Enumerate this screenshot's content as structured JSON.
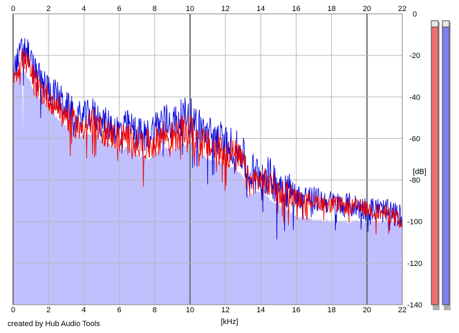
{
  "chart_data": {
    "type": "area",
    "title": "",
    "xlabel": "[kHz]",
    "ylabel": "[dB]",
    "xlim": [
      0,
      22
    ],
    "ylim": [
      -140,
      0
    ],
    "x_ticks": [
      0,
      2,
      4,
      6,
      8,
      10,
      12,
      14,
      16,
      18,
      20,
      22
    ],
    "y_ticks": [
      0,
      -20,
      -40,
      -60,
      -80,
      -100,
      -120,
      -140
    ],
    "grid": true,
    "series": [
      {
        "color": "#0000dd",
        "x": [
          0,
          0.3,
          0.55,
          0.8,
          1.2,
          1.6,
          2.0,
          2.5,
          3.0,
          3.5,
          4.0,
          4.5,
          5.0,
          5.5,
          6.0,
          6.5,
          7.0,
          7.5,
          8.0,
          8.5,
          9.0,
          9.5,
          10.0,
          10.5,
          11.0,
          11.5,
          12.0,
          12.5,
          13.0,
          13.3,
          13.6,
          14.0,
          14.5,
          15.0,
          15.5,
          16.0,
          16.5,
          17.0,
          17.5,
          18.0,
          18.5,
          19.0,
          19.5,
          20.0,
          20.5,
          21.0,
          21.5,
          22.0
        ],
        "values": [
          -27,
          -22,
          -16,
          -18,
          -28,
          -33,
          -36,
          -40,
          -45,
          -49,
          -50,
          -48,
          -52,
          -54,
          -56,
          -54,
          -57,
          -59,
          -55,
          -51,
          -53,
          -50,
          -48,
          -54,
          -58,
          -59,
          -62,
          -64,
          -68,
          -78,
          -76,
          -76,
          -79,
          -82,
          -84,
          -88,
          -88,
          -89,
          -90,
          -91,
          -92,
          -92,
          -93,
          -94,
          -94,
          -95,
          -96,
          -98
        ],
        "noise_amplitude": [
          6,
          7,
          8,
          8,
          8,
          8,
          8,
          8,
          8,
          8,
          8,
          8,
          8,
          8,
          8,
          8,
          8,
          8,
          9,
          9,
          9,
          9,
          9,
          9,
          9,
          9,
          9,
          9,
          9,
          10,
          10,
          10,
          10,
          10,
          10,
          6,
          6,
          6,
          6,
          6,
          6,
          6,
          6,
          6,
          6,
          6,
          6,
          6
        ]
      },
      {
        "color": "#ee0000",
        "x": [
          0,
          0.3,
          0.55,
          0.8,
          1.2,
          1.6,
          2.0,
          2.5,
          3.0,
          3.5,
          4.0,
          4.5,
          5.0,
          5.5,
          6.0,
          6.5,
          7.0,
          7.5,
          8.0,
          8.5,
          9.0,
          9.5,
          10.0,
          10.5,
          11.0,
          11.5,
          12.0,
          12.5,
          13.0,
          13.3,
          13.6,
          14.0,
          14.5,
          15.0,
          15.5,
          16.0,
          16.5,
          17.0,
          17.5,
          18.0,
          18.5,
          19.0,
          19.5,
          20.0,
          20.5,
          21.0,
          21.5,
          22.0
        ],
        "values": [
          -30,
          -26,
          -22,
          -24,
          -32,
          -37,
          -40,
          -44,
          -49,
          -53,
          -54,
          -52,
          -56,
          -58,
          -60,
          -58,
          -62,
          -64,
          -62,
          -58,
          -60,
          -57,
          -56,
          -61,
          -64,
          -65,
          -66,
          -68,
          -72,
          -82,
          -80,
          -80,
          -82,
          -85,
          -86,
          -89,
          -90,
          -90,
          -91,
          -92,
          -92,
          -93,
          -93,
          -94,
          -95,
          -96,
          -97,
          -103
        ],
        "noise_amplitude": [
          5,
          6,
          6,
          6,
          7,
          7,
          7,
          7,
          7,
          7,
          7,
          7,
          7,
          7,
          7,
          7,
          8,
          8,
          8,
          8,
          8,
          8,
          8,
          8,
          8,
          8,
          8,
          8,
          8,
          7,
          7,
          7,
          7,
          7,
          7,
          4,
          4,
          4,
          4,
          4,
          4,
          4,
          4,
          4,
          4,
          4,
          4,
          6
        ]
      }
    ],
    "envelope": {
      "color": "#c0c0ff",
      "x": [
        0,
        0.3,
        0.55,
        0.8,
        1.2,
        1.6,
        2.0,
        2.5,
        3.0,
        3.5,
        4.0,
        4.5,
        5.0,
        5.5,
        6.0,
        6.5,
        7.0,
        7.5,
        8.0,
        8.5,
        9.0,
        9.5,
        10.0,
        10.5,
        11.0,
        11.5,
        12.0,
        12.5,
        13.0,
        13.3,
        13.6,
        14.0,
        14.5,
        15.0,
        15.5,
        16.0,
        16.5,
        17.0,
        17.5,
        18.0,
        18.5,
        19.0,
        19.5,
        20.0,
        20.5,
        21.0,
        21.5,
        22.0
      ],
      "values": [
        -33,
        -30,
        -27,
        -30,
        -37,
        -42,
        -45,
        -50,
        -54,
        -58,
        -59,
        -57,
        -61,
        -63,
        -66,
        -64,
        -68,
        -70,
        -68,
        -64,
        -66,
        -63,
        -62,
        -67,
        -70,
        -71,
        -72,
        -74,
        -78,
        -88,
        -86,
        -86,
        -89,
        -92,
        -94,
        -98,
        -98,
        -99,
        -99,
        -100,
        -100,
        -100,
        -100,
        -100,
        -100,
        -100,
        -100,
        -103
      ]
    },
    "level_meters": [
      {
        "color": "#f07070",
        "level": 0.978
      },
      {
        "color": "#8080f0",
        "level": 0.978
      }
    ]
  },
  "footer": {
    "credit": "created by Hub Audio Tools"
  }
}
